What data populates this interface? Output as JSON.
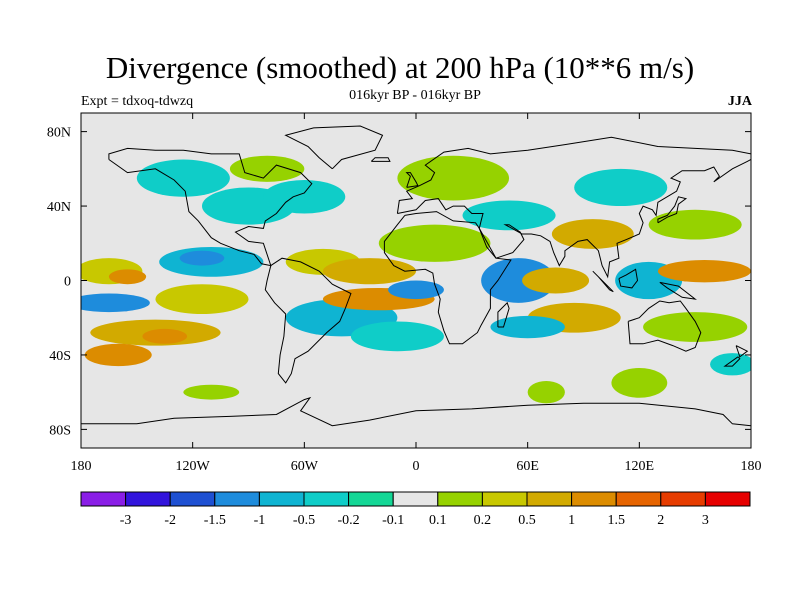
{
  "title": "Divergence (smoothed) at 200 hPa (10**6 m/s)",
  "subtitle": "016kyr BP - 016kyr BP",
  "experiment": "Expt = tdxoq-tdwzq",
  "season": "JJA",
  "map": {
    "projection": "cylindrical-equidistant",
    "lon_range": [
      -180,
      180
    ],
    "lat_range": [
      -90,
      90
    ],
    "x_ticks": [
      {
        "lon": -180,
        "label": "180"
      },
      {
        "lon": -120,
        "label": "120W"
      },
      {
        "lon": -60,
        "label": "60W"
      },
      {
        "lon": 0,
        "label": "0"
      },
      {
        "lon": 60,
        "label": "60E"
      },
      {
        "lon": 120,
        "label": "120E"
      },
      {
        "lon": 180,
        "label": "180"
      }
    ],
    "y_ticks": [
      {
        "lat": 80,
        "label": "80N"
      },
      {
        "lat": 40,
        "label": "40N"
      },
      {
        "lat": 0,
        "label": "0"
      },
      {
        "lat": -40,
        "label": "40S"
      },
      {
        "lat": -80,
        "label": "80S"
      }
    ],
    "background_color": "#e6e6e6"
  },
  "colorbar": {
    "colors": [
      "#8a1ee6",
      "#3214dc",
      "#1e50d2",
      "#1e8cdc",
      "#0fb4d2",
      "#0fcdc8",
      "#14d796",
      "#e6e6e6",
      "#96d200",
      "#c8c800",
      "#d2aa00",
      "#dc8c00",
      "#e66400",
      "#e63c00",
      "#e60000"
    ],
    "labels": [
      "-3",
      "-2",
      "-1.5",
      "-1",
      "-0.5",
      "-0.2",
      "-0.1",
      "0.1",
      "0.2",
      "0.5",
      "1",
      "1.5",
      "2",
      "3"
    ]
  },
  "blobs": [
    {
      "lon": -165,
      "lat": 5,
      "rx": 18,
      "ry": 7,
      "color": "#c8c800"
    },
    {
      "lon": -155,
      "lat": 2,
      "rx": 10,
      "ry": 4,
      "color": "#dc8c00"
    },
    {
      "lon": -165,
      "lat": -12,
      "rx": 22,
      "ry": 5,
      "color": "#1e8cdc"
    },
    {
      "lon": -140,
      "lat": -28,
      "rx": 35,
      "ry": 7,
      "color": "#d2aa00"
    },
    {
      "lon": -135,
      "lat": -30,
      "rx": 12,
      "ry": 4,
      "color": "#dc8c00"
    },
    {
      "lon": -160,
      "lat": -40,
      "rx": 18,
      "ry": 6,
      "color": "#dc8c00"
    },
    {
      "lon": -115,
      "lat": -10,
      "rx": 25,
      "ry": 8,
      "color": "#c8c800"
    },
    {
      "lon": -110,
      "lat": 10,
      "rx": 28,
      "ry": 8,
      "color": "#0fb4d2"
    },
    {
      "lon": -115,
      "lat": 12,
      "rx": 12,
      "ry": 4,
      "color": "#1e8cdc"
    },
    {
      "lon": -125,
      "lat": 55,
      "rx": 25,
      "ry": 10,
      "color": "#0fcdc8"
    },
    {
      "lon": -90,
      "lat": 40,
      "rx": 25,
      "ry": 10,
      "color": "#0fcdc8"
    },
    {
      "lon": -80,
      "lat": 60,
      "rx": 20,
      "ry": 7,
      "color": "#96d200"
    },
    {
      "lon": -60,
      "lat": 45,
      "rx": 22,
      "ry": 9,
      "color": "#0fcdc8"
    },
    {
      "lon": -50,
      "lat": 10,
      "rx": 20,
      "ry": 7,
      "color": "#c8c800"
    },
    {
      "lon": -40,
      "lat": -20,
      "rx": 30,
      "ry": 10,
      "color": "#0fb4d2"
    },
    {
      "lon": -25,
      "lat": 5,
      "rx": 25,
      "ry": 7,
      "color": "#d2aa00"
    },
    {
      "lon": -20,
      "lat": -10,
      "rx": 30,
      "ry": 6,
      "color": "#dc8c00"
    },
    {
      "lon": 0,
      "lat": -5,
      "rx": 15,
      "ry": 5,
      "color": "#1e8cdc"
    },
    {
      "lon": -10,
      "lat": -30,
      "rx": 25,
      "ry": 8,
      "color": "#0fcdc8"
    },
    {
      "lon": 10,
      "lat": 20,
      "rx": 30,
      "ry": 10,
      "color": "#96d200"
    },
    {
      "lon": 20,
      "lat": 55,
      "rx": 30,
      "ry": 12,
      "color": "#96d200"
    },
    {
      "lon": 50,
      "lat": 35,
      "rx": 25,
      "ry": 8,
      "color": "#0fcdc8"
    },
    {
      "lon": 55,
      "lat": 0,
      "rx": 20,
      "ry": 12,
      "color": "#1e8cdc"
    },
    {
      "lon": 75,
      "lat": 0,
      "rx": 18,
      "ry": 7,
      "color": "#d2aa00"
    },
    {
      "lon": 85,
      "lat": -20,
      "rx": 25,
      "ry": 8,
      "color": "#d2aa00"
    },
    {
      "lon": 60,
      "lat": -25,
      "rx": 20,
      "ry": 6,
      "color": "#0fb4d2"
    },
    {
      "lon": 95,
      "lat": 25,
      "rx": 22,
      "ry": 8,
      "color": "#d2aa00"
    },
    {
      "lon": 110,
      "lat": 50,
      "rx": 25,
      "ry": 10,
      "color": "#0fcdc8"
    },
    {
      "lon": 125,
      "lat": 0,
      "rx": 18,
      "ry": 10,
      "color": "#0fb4d2"
    },
    {
      "lon": 155,
      "lat": 5,
      "rx": 25,
      "ry": 6,
      "color": "#dc8c00"
    },
    {
      "lon": 150,
      "lat": 30,
      "rx": 25,
      "ry": 8,
      "color": "#96d200"
    },
    {
      "lon": 150,
      "lat": -25,
      "rx": 28,
      "ry": 8,
      "color": "#96d200"
    },
    {
      "lon": 120,
      "lat": -55,
      "rx": 15,
      "ry": 8,
      "color": "#96d200"
    },
    {
      "lon": 70,
      "lat": -60,
      "rx": 10,
      "ry": 6,
      "color": "#96d200"
    },
    {
      "lon": -110,
      "lat": -60,
      "rx": 15,
      "ry": 4,
      "color": "#96d200"
    },
    {
      "lon": 170,
      "lat": -45,
      "rx": 12,
      "ry": 6,
      "color": "#0fcdc8"
    }
  ]
}
